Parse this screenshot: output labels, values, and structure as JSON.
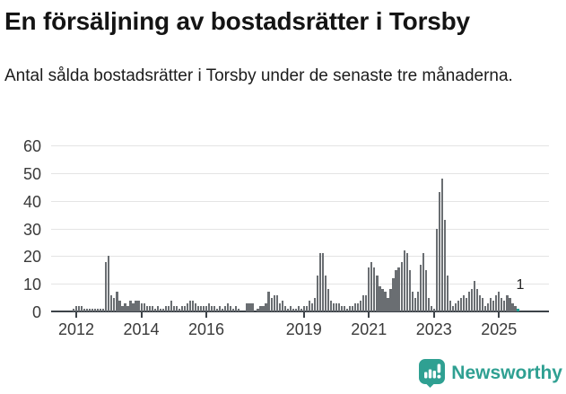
{
  "header": {
    "title": "En försäljning av bostadsrätter i Torsby",
    "subtitle": "Antal sålda bostadsrätter i Torsby under de senaste tre månaderna."
  },
  "chart_data": {
    "type": "bar",
    "title": "En försäljning av bostadsrätter i Torsby",
    "xlabel": "",
    "ylabel": "",
    "grid": true,
    "legend": false,
    "y_ticks": [
      0,
      10,
      20,
      30,
      40,
      50,
      60
    ],
    "ylim": [
      0,
      62
    ],
    "x_tick_labels": [
      "2012",
      "2014",
      "2016",
      "2019",
      "2021",
      "2023",
      "2025"
    ],
    "frequency": "monthly",
    "start_month": "2011-12",
    "end_month": "2025-08",
    "values": [
      1,
      2,
      2,
      2,
      1,
      1,
      1,
      1,
      1,
      1,
      1,
      1,
      18,
      20,
      6,
      5,
      7,
      4,
      2,
      3,
      2,
      4,
      3,
      4,
      4,
      3,
      3,
      2,
      2,
      2,
      1,
      2,
      1,
      1,
      2,
      2,
      4,
      2,
      2,
      1,
      2,
      2,
      3,
      4,
      4,
      3,
      2,
      2,
      2,
      2,
      3,
      2,
      2,
      1,
      2,
      1,
      2,
      3,
      2,
      1,
      2,
      1,
      0,
      0,
      3,
      3,
      3,
      0,
      1,
      2,
      2,
      3,
      7,
      5,
      6,
      6,
      3,
      4,
      2,
      1,
      2,
      1,
      1,
      2,
      1,
      2,
      2,
      4,
      3,
      5,
      13,
      21,
      21,
      13,
      8,
      4,
      3,
      3,
      3,
      2,
      2,
      1,
      2,
      2,
      3,
      3,
      4,
      6,
      6,
      16,
      18,
      16,
      13,
      9,
      8,
      7,
      5,
      8,
      12,
      15,
      16,
      18,
      22,
      21,
      15,
      7,
      5,
      7,
      17,
      21,
      15,
      5,
      2,
      1,
      30,
      43,
      48,
      33,
      13,
      4,
      2,
      3,
      4,
      5,
      6,
      5,
      7,
      8,
      11,
      8,
      6,
      5,
      2,
      3,
      5,
      4,
      6,
      7,
      5,
      4,
      6,
      5,
      3,
      2,
      1
    ],
    "last_value_label": "1",
    "last_bar_highlighted": true,
    "colors": {
      "bar": "#6a6e72",
      "highlight": "#1ca193",
      "gridline": "#e4e4e4",
      "axis": "#3c4248",
      "axis_text": "#3a3a3a"
    }
  },
  "footer": {
    "brand": "Newsworthy",
    "brand_color": "#2fa092",
    "icon": "newsworthy-bar-chart-bubble-icon"
  }
}
